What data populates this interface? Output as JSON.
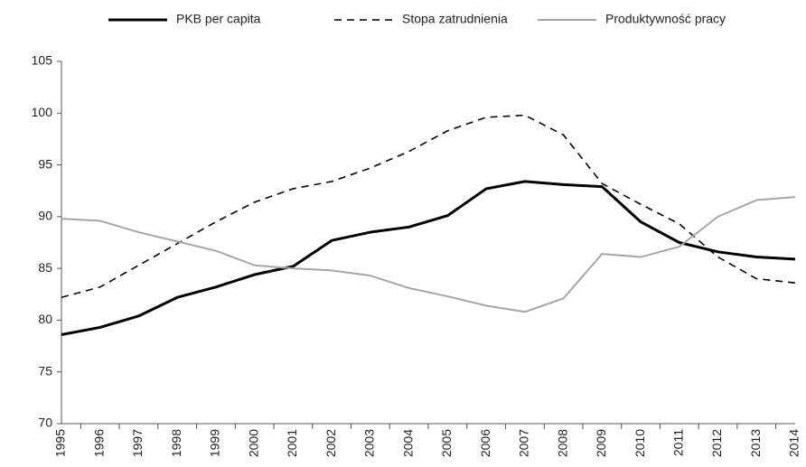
{
  "chart_data": {
    "type": "line",
    "categories": [
      "1995",
      "1996",
      "1997",
      "1998",
      "1999",
      "2000",
      "2001",
      "2002",
      "2003",
      "2004",
      "2005",
      "2006",
      "2007",
      "2008",
      "2009",
      "2010",
      "2011",
      "2012",
      "2013",
      "2014"
    ],
    "series": [
      {
        "name": "PKB per capita",
        "color": "#000000",
        "style": "solid",
        "width": 3,
        "values": [
          78.6,
          79.3,
          80.4,
          82.2,
          83.2,
          84.4,
          85.2,
          87.7,
          88.5,
          89.0,
          90.1,
          92.7,
          93.4,
          93.1,
          92.9,
          89.5,
          87.5,
          86.6,
          86.1,
          85.9
        ]
      },
      {
        "name": "Stopa zatrudnienia",
        "color": "#000000",
        "style": "dashed",
        "width": 1.6,
        "values": [
          82.2,
          83.2,
          85.3,
          87.4,
          89.5,
          91.4,
          92.7,
          93.4,
          94.7,
          96.3,
          98.3,
          99.6,
          99.8,
          97.9,
          93.2,
          91.2,
          89.3,
          86.1,
          84.0,
          83.6
        ]
      },
      {
        "name": "Produktywność pracy",
        "color": "#a6a6a6",
        "style": "solid",
        "width": 2,
        "values": [
          89.8,
          89.6,
          88.5,
          87.6,
          86.7,
          85.3,
          85.0,
          84.8,
          84.3,
          83.1,
          82.3,
          81.4,
          80.8,
          82.1,
          86.4,
          86.1,
          87.1,
          90.0,
          91.6,
          91.9
        ]
      }
    ],
    "ylim": [
      70,
      105
    ],
    "yticks": [
      70,
      75,
      80,
      85,
      90,
      95,
      100,
      105
    ],
    "grid": false,
    "legend": "top"
  }
}
